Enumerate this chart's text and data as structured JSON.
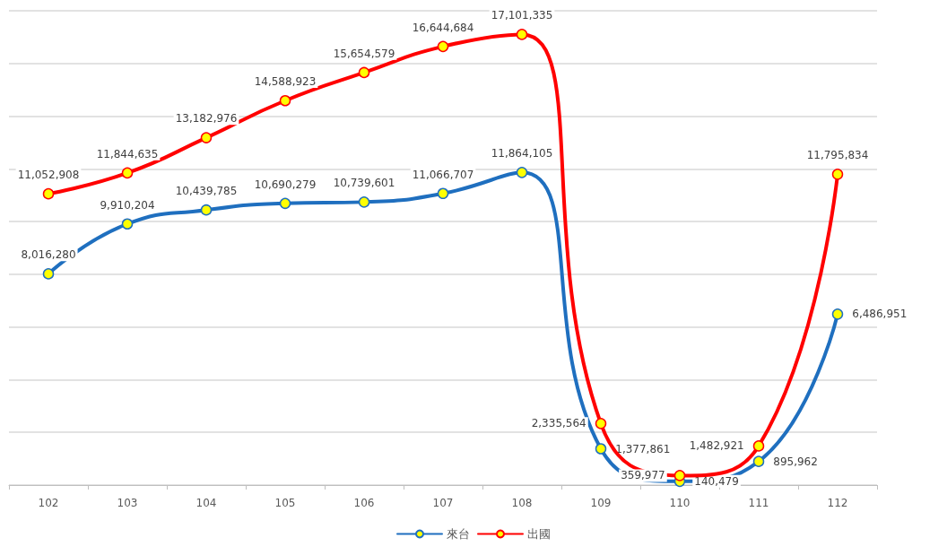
{
  "chart_data": {
    "type": "line",
    "categories": [
      "102",
      "103",
      "104",
      "105",
      "106",
      "107",
      "108",
      "109",
      "110",
      "111",
      "112"
    ],
    "series": [
      {
        "name": "來台",
        "color": "#1f6fbf",
        "values": [
          8016280,
          9910204,
          10439785,
          10690279,
          10739601,
          11066707,
          11864105,
          1377861,
          140479,
          895962,
          6486951
        ],
        "value_labels": [
          "8,016,280",
          "9,910,204",
          "10,439,785",
          "10,690,279",
          "10,739,601",
          "11,066,707",
          "11,864,105",
          "1,377,861",
          "140,479",
          "895,962",
          "6,486,951"
        ]
      },
      {
        "name": "出國",
        "color": "#ff0000",
        "values": [
          11052908,
          11844635,
          13182976,
          14588923,
          15654579,
          16644684,
          17101335,
          2335564,
          359977,
          1482921,
          11795834
        ],
        "value_labels": [
          "11,052,908",
          "11,844,635",
          "13,182,976",
          "14,588,923",
          "15,654,579",
          "16,644,684",
          "17,101,335",
          "2,335,564",
          "359,977",
          "1,482,921",
          "11,795,834"
        ]
      }
    ],
    "tick_labels": "x",
    "grid": "y",
    "legend": "bottom",
    "marker": "circle",
    "line_style": "solid"
  }
}
